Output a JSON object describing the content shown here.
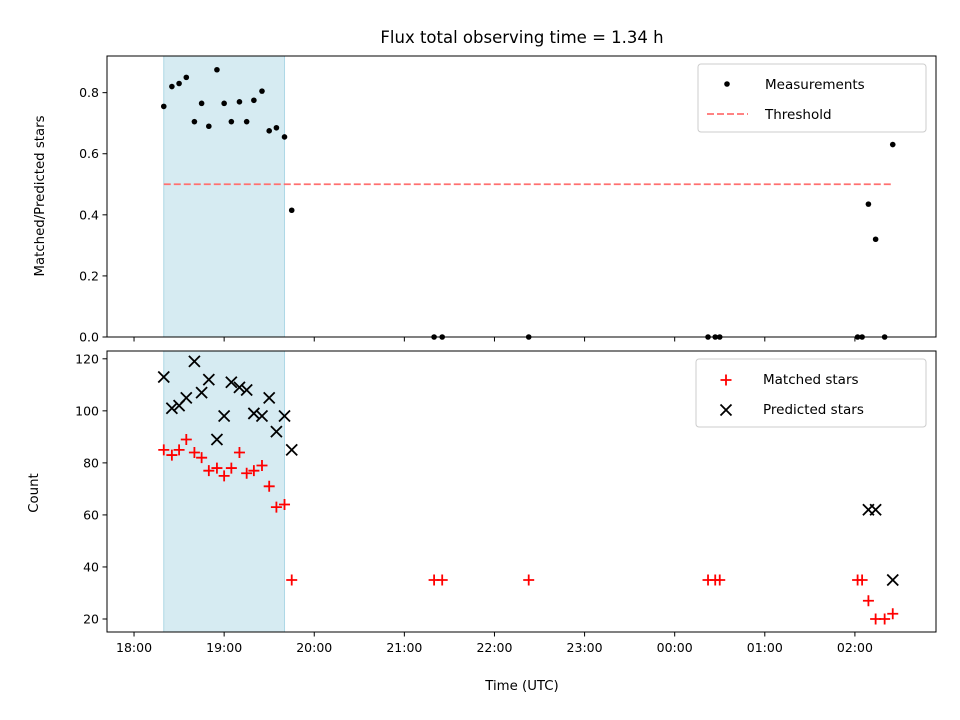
{
  "chart_data": [
    {
      "panel": "top",
      "type": "scatter",
      "title": "Flux total observing time = 1.34 h",
      "xlabel": "",
      "ylabel": "Matched/Predicted stars",
      "x_unit": "hours since 18:00 UTC",
      "xlim": [
        -0.3,
        8.9
      ],
      "ylim": [
        0.0,
        0.92
      ],
      "yticks": [
        0.0,
        0.2,
        0.4,
        0.6,
        0.8
      ],
      "ytick_labels": [
        "0.0",
        "0.2",
        "0.4",
        "0.6",
        "0.8"
      ],
      "xticks": [
        0,
        1,
        2,
        3,
        4,
        5,
        6,
        7,
        8
      ],
      "show_xtick_labels": false,
      "shaded_interval": {
        "x": [
          0.33,
          1.67
        ],
        "color": "#add8e6"
      },
      "legend": {
        "placement": "upper right"
      },
      "series": [
        {
          "name": "Measurements",
          "marker": "dot",
          "color": "#000000",
          "x": [
            0.33,
            0.42,
            0.5,
            0.58,
            0.67,
            0.75,
            0.83,
            0.92,
            1.0,
            1.08,
            1.17,
            1.25,
            1.33,
            1.42,
            1.5,
            1.58,
            1.67,
            1.75,
            3.33,
            3.42,
            4.38,
            6.37,
            6.45,
            6.5,
            8.03,
            8.08,
            8.15,
            8.23,
            8.33,
            8.42
          ],
          "y": [
            0.755,
            0.82,
            0.83,
            0.85,
            0.705,
            0.765,
            0.69,
            0.875,
            0.765,
            0.705,
            0.77,
            0.705,
            0.775,
            0.805,
            0.675,
            0.685,
            0.655,
            0.415,
            0.0,
            0.0,
            0.0,
            0.0,
            0.0,
            0.0,
            0.0,
            0.0,
            0.435,
            0.32,
            0.0,
            0.63
          ]
        },
        {
          "name": "Threshold",
          "line_style": "dashed",
          "color": "#ff7070",
          "x": [
            0.33,
            8.42
          ],
          "y": [
            0.5,
            0.5
          ]
        }
      ]
    },
    {
      "panel": "bottom",
      "type": "scatter",
      "title": "",
      "xlabel": "Time (UTC)",
      "ylabel": "Count",
      "x_unit": "hours since 18:00 UTC",
      "xlim": [
        -0.3,
        8.9
      ],
      "ylim": [
        15,
        123
      ],
      "yticks": [
        20,
        40,
        60,
        80,
        100,
        120
      ],
      "ytick_labels": [
        "20",
        "40",
        "60",
        "80",
        "100",
        "120"
      ],
      "xticks": [
        0,
        1,
        2,
        3,
        4,
        5,
        6,
        7,
        8
      ],
      "xtick_labels": [
        "18:00",
        "19:00",
        "20:00",
        "21:00",
        "22:00",
        "23:00",
        "00:00",
        "01:00",
        "02:00"
      ],
      "shaded_interval": {
        "x": [
          0.33,
          1.67
        ],
        "color": "#add8e6"
      },
      "legend": {
        "placement": "upper right"
      },
      "series": [
        {
          "name": "Matched stars",
          "marker": "plus",
          "color": "#ff0000",
          "x": [
            0.33,
            0.42,
            0.5,
            0.58,
            0.67,
            0.75,
            0.83,
            0.92,
            1.0,
            1.08,
            1.17,
            1.25,
            1.33,
            1.42,
            1.5,
            1.58,
            1.67,
            1.75,
            3.33,
            3.42,
            4.38,
            6.37,
            6.45,
            6.5,
            8.03,
            8.08,
            8.15,
            8.23,
            8.33,
            8.42
          ],
          "y": [
            85,
            83,
            85,
            89,
            84,
            82,
            77,
            78,
            75,
            78,
            84,
            76,
            77,
            79,
            71,
            63,
            64,
            35,
            35,
            35,
            35,
            35,
            35,
            35,
            35,
            35,
            27,
            20,
            20,
            22
          ]
        },
        {
          "name": "Predicted stars",
          "marker": "x",
          "color": "#000000",
          "x": [
            0.33,
            0.42,
            0.5,
            0.58,
            0.67,
            0.75,
            0.83,
            0.92,
            1.0,
            1.08,
            1.17,
            1.25,
            1.33,
            1.42,
            1.5,
            1.58,
            1.67,
            1.75,
            8.15,
            8.23,
            8.42
          ],
          "y": [
            113,
            101,
            102,
            105,
            119,
            107,
            112,
            89,
            98,
            111,
            109,
            108,
            99,
            98,
            105,
            92,
            98,
            85,
            62,
            62,
            35
          ]
        }
      ]
    }
  ]
}
